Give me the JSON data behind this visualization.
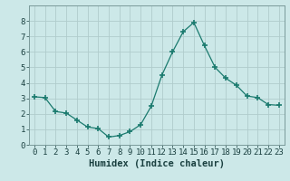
{
  "x": [
    0,
    1,
    2,
    3,
    4,
    5,
    6,
    7,
    8,
    9,
    10,
    11,
    12,
    13,
    14,
    15,
    16,
    17,
    18,
    19,
    20,
    21,
    22,
    23
  ],
  "y": [
    3.1,
    3.05,
    2.15,
    2.05,
    1.6,
    1.15,
    1.05,
    0.5,
    0.6,
    0.85,
    1.3,
    2.5,
    4.5,
    6.0,
    7.3,
    7.9,
    6.4,
    5.0,
    4.3,
    3.85,
    3.15,
    3.05,
    2.6,
    2.55
  ],
  "line_color": "#1a7a6e",
  "marker": "+",
  "marker_size": 5,
  "marker_lw": 1.2,
  "bg_color": "#cce8e8",
  "grid_color": "#b0cccc",
  "xlabel": "Humidex (Indice chaleur)",
  "xlabel_color": "#1a4040",
  "xlabel_fontsize": 7.5,
  "tick_color": "#1a4040",
  "tick_fontsize": 6.5,
  "ylim": [
    0,
    9
  ],
  "xlim": [
    -0.5,
    23.5
  ],
  "yticks": [
    0,
    1,
    2,
    3,
    4,
    5,
    6,
    7,
    8
  ],
  "xticks": [
    0,
    1,
    2,
    3,
    4,
    5,
    6,
    7,
    8,
    9,
    10,
    11,
    12,
    13,
    14,
    15,
    16,
    17,
    18,
    19,
    20,
    21,
    22,
    23
  ]
}
